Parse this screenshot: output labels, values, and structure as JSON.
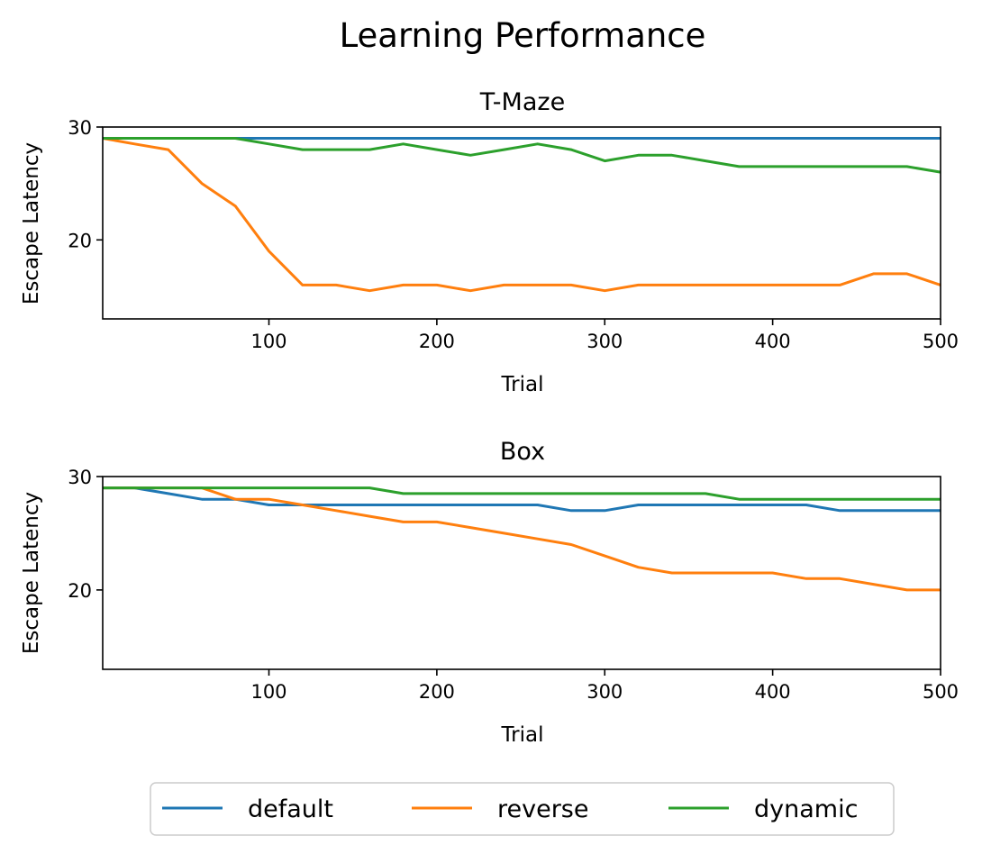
{
  "figure": {
    "suptitle": "Learning Performance"
  },
  "legend": {
    "placement": "bottom-center",
    "entries": [
      {
        "label": "default",
        "color": "#1f77b4"
      },
      {
        "label": "reverse",
        "color": "#ff7f0e"
      },
      {
        "label": "dynamic",
        "color": "#2ca02c"
      }
    ]
  },
  "chart_data": [
    {
      "type": "line",
      "title": "T-Maze",
      "xlabel": "Trial",
      "ylabel": "Escape Latency",
      "xlim": [
        1,
        500
      ],
      "ylim": [
        13,
        30
      ],
      "xticks": [
        100,
        200,
        300,
        400,
        500
      ],
      "yticks": [
        20,
        30
      ],
      "xtick_labels": [
        "100",
        "200",
        "300",
        "400",
        "500"
      ],
      "ytick_labels": [
        "20",
        "30"
      ],
      "grid": false,
      "x": [
        1,
        20,
        40,
        60,
        80,
        100,
        120,
        140,
        160,
        180,
        200,
        220,
        240,
        260,
        280,
        300,
        320,
        340,
        360,
        380,
        400,
        420,
        440,
        460,
        480,
        500
      ],
      "series": [
        {
          "name": "default",
          "color": "#1f77b4",
          "values": [
            29,
            29,
            29,
            29,
            29,
            29,
            29,
            29,
            29,
            29,
            29,
            29,
            29,
            29,
            29,
            29,
            29,
            29,
            29,
            29,
            29,
            29,
            29,
            29,
            29,
            29
          ]
        },
        {
          "name": "reverse",
          "color": "#ff7f0e",
          "values": [
            29,
            28.5,
            28,
            25,
            23,
            19,
            16,
            16,
            15.5,
            16,
            16,
            15.5,
            16,
            16,
            16,
            15.5,
            16,
            16,
            16,
            16,
            16,
            16,
            16,
            17,
            17,
            16
          ]
        },
        {
          "name": "dynamic",
          "color": "#2ca02c",
          "values": [
            29,
            29,
            29,
            29,
            29,
            28.5,
            28,
            28,
            28,
            28.5,
            28,
            27.5,
            28,
            28.5,
            28,
            27,
            27.5,
            27.5,
            27,
            26.5,
            26.5,
            26.5,
            26.5,
            26.5,
            26.5,
            26
          ]
        }
      ]
    },
    {
      "type": "line",
      "title": "Box",
      "xlabel": "Trial",
      "ylabel": "Escape Latency",
      "xlim": [
        1,
        500
      ],
      "ylim": [
        13,
        30
      ],
      "xticks": [
        100,
        200,
        300,
        400,
        500
      ],
      "yticks": [
        20,
        30
      ],
      "xtick_labels": [
        "100",
        "200",
        "300",
        "400",
        "500"
      ],
      "ytick_labels": [
        "20",
        "30"
      ],
      "grid": false,
      "x": [
        1,
        20,
        40,
        60,
        80,
        100,
        120,
        140,
        160,
        180,
        200,
        220,
        240,
        260,
        280,
        300,
        320,
        340,
        360,
        380,
        400,
        420,
        440,
        460,
        480,
        500
      ],
      "series": [
        {
          "name": "default",
          "color": "#1f77b4",
          "values": [
            29,
            29,
            28.5,
            28,
            28,
            27.5,
            27.5,
            27.5,
            27.5,
            27.5,
            27.5,
            27.5,
            27.5,
            27.5,
            27,
            27,
            27.5,
            27.5,
            27.5,
            27.5,
            27.5,
            27.5,
            27,
            27,
            27,
            27
          ]
        },
        {
          "name": "reverse",
          "color": "#ff7f0e",
          "values": [
            29,
            29,
            29,
            29,
            28,
            28,
            27.5,
            27,
            26.5,
            26,
            26,
            25.5,
            25,
            24.5,
            24,
            23,
            22,
            21.5,
            21.5,
            21.5,
            21.5,
            21,
            21,
            20.5,
            20,
            20
          ]
        },
        {
          "name": "dynamic",
          "color": "#2ca02c",
          "values": [
            29,
            29,
            29,
            29,
            29,
            29,
            29,
            29,
            29,
            28.5,
            28.5,
            28.5,
            28.5,
            28.5,
            28.5,
            28.5,
            28.5,
            28.5,
            28.5,
            28,
            28,
            28,
            28,
            28,
            28,
            28
          ]
        }
      ]
    }
  ]
}
